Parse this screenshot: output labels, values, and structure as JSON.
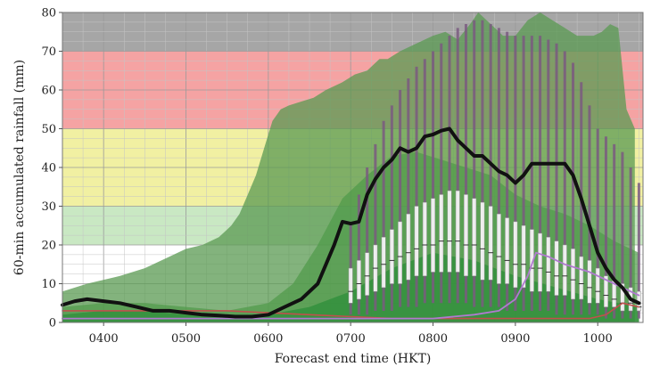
{
  "chart_data": {
    "type": "line",
    "title": "",
    "xlabel": "Forecast end time (HKT)",
    "ylabel": "60-min accumulated rainfall (mm)",
    "xlim": [
      350,
      1055
    ],
    "ylim": [
      0,
      80
    ],
    "x_ticks": [
      "0400",
      "0500",
      "0600",
      "0700",
      "0800",
      "0900",
      "1000"
    ],
    "x_tick_values": [
      400,
      500,
      600,
      700,
      800,
      900,
      1000
    ],
    "y_ticks": [
      "0",
      "10",
      "20",
      "30",
      "40",
      "50",
      "60",
      "70",
      "80"
    ],
    "y_tick_values": [
      0,
      10,
      20,
      30,
      40,
      50,
      60,
      70,
      80
    ],
    "grid": true,
    "colors": {
      "band_black": "#a6a6a6",
      "band_red": "#f5a3a3",
      "band_amber": "#f1f0a2",
      "band_green": "#c9e8c3",
      "max_envelope": "#5a9a52",
      "p90_envelope": "#4e9a49",
      "p50_envelope": "#2e8f3a",
      "median_line": "#111111",
      "box_fill": "#eeeeee",
      "whisker": "#7a5a80",
      "purple_line": "#b07ad0",
      "red_line": "#c0504d"
    },
    "rainstorm_bands": [
      {
        "from": 70,
        "to": 80,
        "color": "#a6a6a6"
      },
      {
        "from": 50,
        "to": 70,
        "color": "#f5a3a3"
      },
      {
        "from": 30,
        "to": 50,
        "color": "#f1f0a2"
      },
      {
        "from": 20,
        "to": 30,
        "color": "#c9e8c3"
      }
    ],
    "series": [
      {
        "role": "ensemble-max-envelope",
        "color": "#5a9a52",
        "x": [
          350,
          380,
          420,
          450,
          480,
          500,
          520,
          540,
          555,
          565,
          575,
          585,
          595,
          605,
          615,
          625,
          640,
          655,
          670,
          690,
          705,
          720,
          735,
          745,
          760,
          780,
          800,
          815,
          830,
          845,
          855,
          865,
          875,
          885,
          900,
          915,
          930,
          945,
          960,
          975,
          985,
          995,
          1005,
          1015,
          1025,
          1035,
          1045
        ],
        "y": [
          8,
          10,
          12,
          14,
          17,
          19,
          20,
          22,
          25,
          28,
          33,
          38,
          45,
          52,
          55,
          56,
          57,
          58,
          60,
          62,
          64,
          65,
          68,
          68,
          70,
          72,
          74,
          75,
          73,
          77,
          80,
          78,
          76,
          74,
          74,
          78,
          80,
          78,
          76,
          74,
          74,
          74,
          75,
          77,
          76,
          55,
          50
        ]
      },
      {
        "role": "ensemble-p90-envelope",
        "color": "#4e9a49",
        "x": [
          350,
          400,
          450,
          500,
          550,
          600,
          630,
          660,
          690,
          720,
          750,
          780,
          810,
          840,
          870,
          900,
          930,
          960,
          990,
          1020,
          1050
        ],
        "y": [
          4,
          5,
          5,
          4,
          3,
          5,
          10,
          20,
          32,
          38,
          43,
          44,
          42,
          40,
          38,
          33,
          30,
          28,
          25,
          21,
          18
        ]
      },
      {
        "role": "ensemble-p50-envelope",
        "color": "#2e8f3a",
        "x": [
          350,
          400,
          450,
          500,
          550,
          600,
          650,
          700,
          750,
          800,
          850,
          900,
          950,
          1000,
          1050
        ],
        "y": [
          2,
          3,
          3,
          2,
          2,
          2,
          4,
          8,
          14,
          18,
          16,
          12,
          9,
          6,
          4
        ]
      },
      {
        "role": "median",
        "color": "#111111",
        "x": [
          350,
          365,
          380,
          400,
          420,
          440,
          460,
          480,
          500,
          520,
          540,
          560,
          580,
          600,
          620,
          640,
          660,
          670,
          680,
          690,
          700,
          710,
          720,
          730,
          740,
          750,
          760,
          770,
          780,
          790,
          800,
          810,
          820,
          830,
          840,
          850,
          860,
          870,
          880,
          890,
          900,
          910,
          920,
          930,
          940,
          950,
          960,
          970,
          980,
          990,
          1000,
          1010,
          1020,
          1030,
          1040,
          1050
        ],
        "y": [
          4.5,
          5.5,
          6,
          5.5,
          5,
          4,
          3,
          3,
          2.5,
          2,
          1.8,
          1.5,
          1.5,
          2,
          4,
          6,
          10,
          15,
          20,
          26,
          25.5,
          26,
          33,
          37,
          40,
          42,
          45,
          44,
          45,
          48,
          48.5,
          49.5,
          50,
          47,
          45,
          43,
          43,
          41,
          39,
          38,
          36,
          38,
          41,
          41,
          41,
          41,
          41,
          38,
          32,
          25,
          18,
          14,
          11,
          9,
          6,
          5
        ]
      },
      {
        "role": "purple-member",
        "color": "#b07ad0",
        "x": [
          350,
          450,
          550,
          650,
          700,
          750,
          800,
          850,
          880,
          900,
          915,
          925,
          940,
          960,
          990,
          1020,
          1050
        ],
        "y": [
          1,
          1,
          1,
          1,
          1,
          1,
          1,
          2,
          3,
          6,
          12,
          18,
          17,
          15,
          13,
          10,
          7
        ]
      },
      {
        "role": "red-member",
        "color": "#c0504d",
        "x": [
          350,
          450,
          550,
          650,
          750,
          850,
          950,
          990,
          1010,
          1030,
          1050
        ],
        "y": [
          3,
          3,
          3,
          2,
          1,
          1,
          1,
          1,
          2,
          5,
          4
        ]
      }
    ],
    "boxplots": [
      {
        "x": 700,
        "p10": 2,
        "p25": 5,
        "p50": 8,
        "p75": 14,
        "p90": 20,
        "max": 26
      },
      {
        "x": 710,
        "p10": 2,
        "p25": 6,
        "p50": 10,
        "p75": 16,
        "p90": 24,
        "max": 33
      },
      {
        "x": 720,
        "p10": 2,
        "p25": 7,
        "p50": 12,
        "p75": 18,
        "p90": 28,
        "max": 40
      },
      {
        "x": 730,
        "p10": 3,
        "p25": 8,
        "p50": 14,
        "p75": 20,
        "p90": 32,
        "max": 46
      },
      {
        "x": 740,
        "p10": 3,
        "p25": 9,
        "p50": 15,
        "p75": 22,
        "p90": 36,
        "max": 52
      },
      {
        "x": 750,
        "p10": 3,
        "p25": 10,
        "p50": 16,
        "p75": 24,
        "p90": 38,
        "max": 56
      },
      {
        "x": 760,
        "p10": 4,
        "p25": 10,
        "p50": 17,
        "p75": 26,
        "p90": 40,
        "max": 60
      },
      {
        "x": 770,
        "p10": 4,
        "p25": 11,
        "p50": 18,
        "p75": 28,
        "p90": 42,
        "max": 63
      },
      {
        "x": 780,
        "p10": 4,
        "p25": 12,
        "p50": 19,
        "p75": 30,
        "p90": 44,
        "max": 66
      },
      {
        "x": 790,
        "p10": 5,
        "p25": 12,
        "p50": 20,
        "p75": 31,
        "p90": 46,
        "max": 68
      },
      {
        "x": 800,
        "p10": 5,
        "p25": 13,
        "p50": 20,
        "p75": 32,
        "p90": 48,
        "max": 70
      },
      {
        "x": 810,
        "p10": 5,
        "p25": 13,
        "p50": 21,
        "p75": 33,
        "p90": 50,
        "max": 72
      },
      {
        "x": 820,
        "p10": 5,
        "p25": 13,
        "p50": 21,
        "p75": 34,
        "p90": 52,
        "max": 74
      },
      {
        "x": 830,
        "p10": 5,
        "p25": 13,
        "p50": 21,
        "p75": 34,
        "p90": 53,
        "max": 76
      },
      {
        "x": 840,
        "p10": 5,
        "p25": 12,
        "p50": 20,
        "p75": 33,
        "p90": 52,
        "max": 77
      },
      {
        "x": 850,
        "p10": 4,
        "p25": 12,
        "p50": 20,
        "p75": 32,
        "p90": 50,
        "max": 78
      },
      {
        "x": 860,
        "p10": 4,
        "p25": 11,
        "p50": 19,
        "p75": 31,
        "p90": 48,
        "max": 78
      },
      {
        "x": 870,
        "p10": 4,
        "p25": 11,
        "p50": 18,
        "p75": 30,
        "p90": 46,
        "max": 77
      },
      {
        "x": 880,
        "p10": 4,
        "p25": 10,
        "p50": 17,
        "p75": 28,
        "p90": 44,
        "max": 76
      },
      {
        "x": 890,
        "p10": 3,
        "p25": 10,
        "p50": 16,
        "p75": 27,
        "p90": 42,
        "max": 75
      },
      {
        "x": 900,
        "p10": 3,
        "p25": 9,
        "p50": 15,
        "p75": 26,
        "p90": 40,
        "max": 74
      },
      {
        "x": 910,
        "p10": 3,
        "p25": 9,
        "p50": 15,
        "p75": 25,
        "p90": 38,
        "max": 74
      },
      {
        "x": 920,
        "p10": 3,
        "p25": 8,
        "p50": 14,
        "p75": 24,
        "p90": 37,
        "max": 74
      },
      {
        "x": 930,
        "p10": 3,
        "p25": 8,
        "p50": 14,
        "p75": 23,
        "p90": 36,
        "max": 74
      },
      {
        "x": 940,
        "p10": 3,
        "p25": 8,
        "p50": 13,
        "p75": 22,
        "p90": 35,
        "max": 73
      },
      {
        "x": 950,
        "p10": 2,
        "p25": 7,
        "p50": 12,
        "p75": 21,
        "p90": 34,
        "max": 72
      },
      {
        "x": 960,
        "p10": 2,
        "p25": 7,
        "p50": 12,
        "p75": 20,
        "p90": 32,
        "max": 70
      },
      {
        "x": 970,
        "p10": 2,
        "p25": 6,
        "p50": 11,
        "p75": 19,
        "p90": 30,
        "max": 67
      },
      {
        "x": 980,
        "p10": 2,
        "p25": 6,
        "p50": 10,
        "p75": 17,
        "p90": 28,
        "max": 62
      },
      {
        "x": 990,
        "p10": 2,
        "p25": 5,
        "p50": 9,
        "p75": 16,
        "p90": 26,
        "max": 56
      },
      {
        "x": 1000,
        "p10": 2,
        "p25": 5,
        "p50": 8,
        "p75": 14,
        "p90": 24,
        "max": 50
      },
      {
        "x": 1010,
        "p10": 1,
        "p25": 4,
        "p50": 7,
        "p75": 12,
        "p90": 22,
        "max": 48
      },
      {
        "x": 1020,
        "p10": 1,
        "p25": 4,
        "p50": 6,
        "p75": 11,
        "p90": 20,
        "max": 46
      },
      {
        "x": 1030,
        "p10": 1,
        "p25": 3,
        "p50": 5,
        "p75": 10,
        "p90": 19,
        "max": 44
      },
      {
        "x": 1040,
        "p10": 1,
        "p25": 3,
        "p50": 5,
        "p75": 9,
        "p90": 18,
        "max": 40
      },
      {
        "x": 1050,
        "p10": 1,
        "p25": 3,
        "p50": 4,
        "p75": 8,
        "p90": 17,
        "max": 36
      }
    ]
  }
}
